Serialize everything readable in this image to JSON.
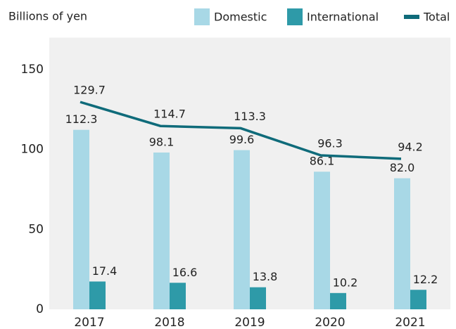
{
  "chart_data": {
    "type": "bar",
    "y_label": "Billions of yen",
    "categories": [
      "2017",
      "2018",
      "2019",
      "2020",
      "2021"
    ],
    "series": [
      {
        "name": "Domestic",
        "color": "#a8d8e6",
        "type": "bar",
        "values": [
          112.3,
          98.1,
          99.6,
          86.1,
          82.0
        ],
        "value_labels": [
          "112.3",
          "98.1",
          "99.6",
          "86.1",
          "82.0"
        ]
      },
      {
        "name": "International",
        "color": "#2e9aa8",
        "type": "bar",
        "values": [
          17.4,
          16.6,
          13.8,
          10.2,
          12.2
        ],
        "value_labels": [
          "17.4",
          "16.6",
          "13.8",
          "10.2",
          "12.2"
        ]
      },
      {
        "name": "Total",
        "color": "#0f6b7a",
        "type": "line",
        "values": [
          129.7,
          114.7,
          113.3,
          96.3,
          94.2
        ],
        "value_labels": [
          "129.7",
          "114.7",
          "113.3",
          "96.3",
          "94.2"
        ]
      }
    ],
    "ylim": [
      0,
      170
    ],
    "yticks": [
      0,
      50,
      100,
      150
    ],
    "grid": false,
    "legend": "top-right"
  }
}
